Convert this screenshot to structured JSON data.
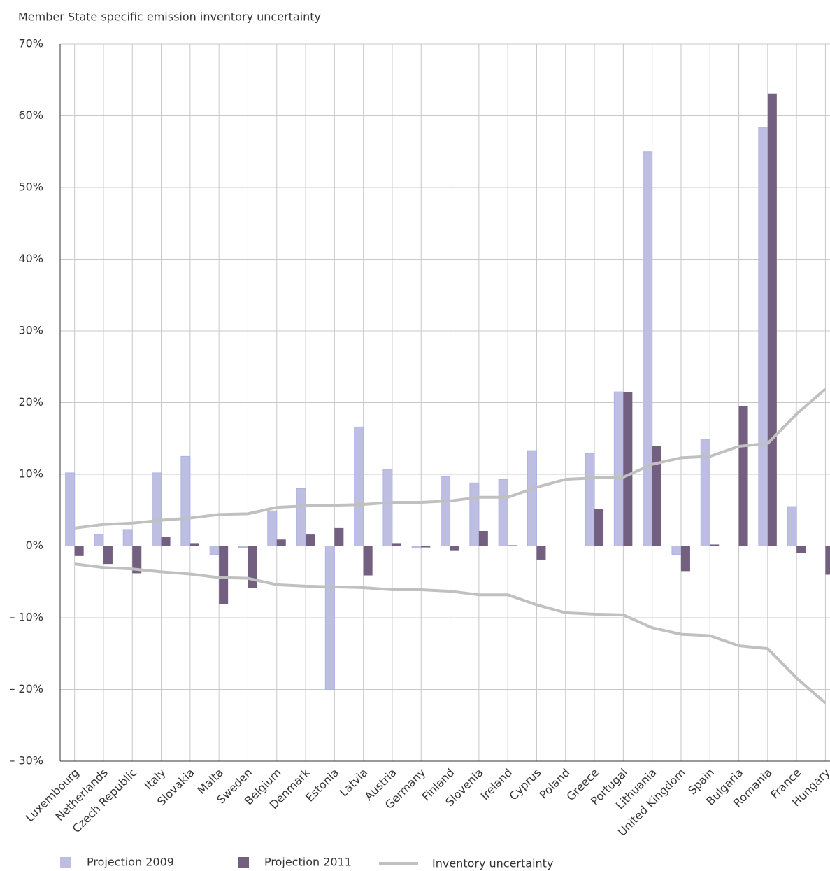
{
  "chart_data": {
    "type": "bar_line",
    "title": "Member State specific emission inventory uncertainty",
    "categories": [
      "Luxembourg",
      "Netherlands",
      "Czech Republic",
      "Italy",
      "Slovakia",
      "Malta",
      "Sweden",
      "Belgium",
      "Denmark",
      "Estonia",
      "Latvia",
      "Austria",
      "Germany",
      "Finland",
      "Slovenia",
      "Ireland",
      "Cyprus",
      "Poland",
      "Greece",
      "Portugal",
      "Lithuania",
      "United Kingdom",
      "Spain",
      "Bulgaria",
      "Romania",
      "France",
      "Hungary"
    ],
    "series": [
      {
        "name": "Projection 2009",
        "type": "bar",
        "color": "#bdbee2",
        "values": [
          10.2,
          1.6,
          2.3,
          10.2,
          12.5,
          -1.2,
          -0.2,
          4.9,
          8.0,
          -20.0,
          16.6,
          10.7,
          -0.3,
          9.7,
          8.8,
          9.3,
          13.3,
          null,
          12.9,
          21.5,
          55.0,
          -1.2,
          14.9,
          null,
          58.4,
          5.5,
          null
        ]
      },
      {
        "name": "Projection 2011",
        "type": "bar",
        "color": "#735f7f",
        "values": [
          -1.4,
          -2.5,
          -3.8,
          1.3,
          0.4,
          -8.1,
          -5.9,
          0.9,
          1.6,
          2.5,
          -4.1,
          0.4,
          -0.2,
          -0.6,
          2.1,
          0.1,
          -1.9,
          null,
          5.2,
          21.5,
          14.0,
          -3.5,
          0.2,
          19.5,
          63.1,
          -1.0,
          -4.0
        ]
      },
      {
        "name": "Inventory uncertainty",
        "type": "line",
        "mirrored": true,
        "color": "#c0c0c0",
        "values": [
          2.5,
          3.0,
          3.2,
          3.6,
          3.9,
          4.4,
          4.5,
          5.4,
          5.6,
          5.7,
          5.8,
          6.1,
          6.1,
          6.3,
          6.8,
          6.8,
          8.2,
          9.3,
          9.5,
          9.6,
          11.4,
          12.3,
          12.5,
          13.9,
          14.3,
          18.4,
          21.9
        ]
      }
    ],
    "ylim": [
      -30,
      70
    ],
    "yticks": [
      {
        "value": -30,
        "label": "– 30%"
      },
      {
        "value": -20,
        "label": "– 20%"
      },
      {
        "value": -10,
        "label": "– 10%"
      },
      {
        "value": 0,
        "label": "0%"
      },
      {
        "value": 10,
        "label": "10%"
      },
      {
        "value": 20,
        "label": "20%"
      },
      {
        "value": 30,
        "label": "30%"
      },
      {
        "value": 40,
        "label": "40%"
      },
      {
        "value": 50,
        "label": "50%"
      },
      {
        "value": 60,
        "label": "60%"
      },
      {
        "value": 70,
        "label": "70%"
      }
    ],
    "grid": true,
    "legend": "bottom"
  }
}
